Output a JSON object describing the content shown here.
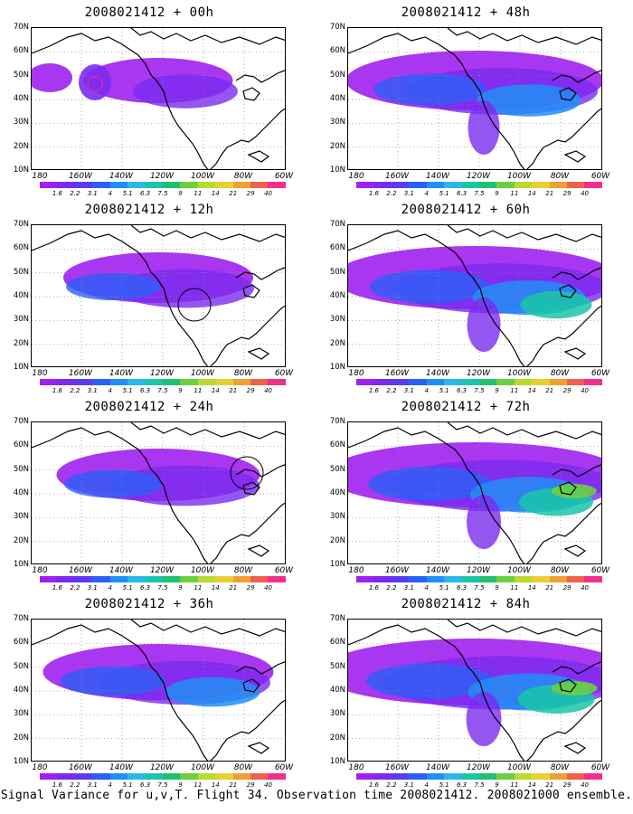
{
  "caption": "Signal Variance for u,v,T. Flight 34. Observation time 2008021412. 2008021000 ensemble.",
  "lat_labels": [
    "70N",
    "60N",
    "50N",
    "40N",
    "30N",
    "20N",
    "10N"
  ],
  "lon_labels": [
    "180",
    "160W",
    "140W",
    "120W",
    "100W",
    "80W",
    "60W"
  ],
  "colorbar": {
    "labels": [
      "1.6",
      "2.2",
      "3.1",
      "4",
      "5.1",
      "6.3",
      "7.5",
      "9",
      "11",
      "14",
      "21",
      "29",
      "40"
    ],
    "colors": [
      "#a020f0",
      "#7b2af0",
      "#5a3cf0",
      "#2b60f8",
      "#1f8ff5",
      "#2ab8e8",
      "#19c6a8",
      "#20c070",
      "#6ccf40",
      "#b7db30",
      "#e6d034",
      "#f0a030",
      "#f0604a",
      "#f0308a"
    ]
  },
  "panels": [
    {
      "title": "2008021412 + 00h",
      "level": 0.15
    },
    {
      "title": "2008021412 + 48h",
      "level": 0.55
    },
    {
      "title": "2008021412 + 12h",
      "level": 0.3
    },
    {
      "title": "2008021412 + 60h",
      "level": 0.65
    },
    {
      "title": "2008021412 + 24h",
      "level": 0.35
    },
    {
      "title": "2008021412 + 72h",
      "level": 0.7
    },
    {
      "title": "2008021412 + 36h",
      "level": 0.45
    },
    {
      "title": "2008021412 + 84h",
      "level": 0.75
    }
  ]
}
